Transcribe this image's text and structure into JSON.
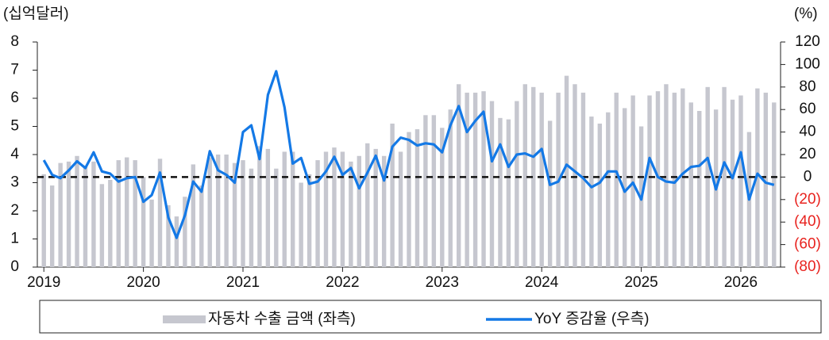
{
  "chart_data": {
    "type": "bar_line",
    "y_unit_label": "(십억달러)",
    "y2_unit_label": "(%)",
    "categories": [
      "2019",
      null,
      null,
      null,
      null,
      null,
      null,
      null,
      null,
      null,
      null,
      null,
      "2020",
      null,
      null,
      null,
      null,
      null,
      null,
      null,
      null,
      null,
      null,
      null,
      "2021",
      null,
      null,
      null,
      null,
      null,
      null,
      null,
      null,
      null,
      null,
      null,
      "2022",
      null,
      null,
      null,
      null,
      null,
      null,
      null,
      null,
      null,
      null,
      null,
      "2023",
      null,
      null,
      null,
      null,
      null,
      null,
      null,
      null,
      null,
      null,
      null,
      "2024",
      null,
      null,
      null,
      null,
      null,
      null,
      null,
      null,
      null,
      null,
      null,
      "2025",
      null,
      null,
      null,
      null,
      null,
      null,
      null,
      null,
      null,
      null,
      null,
      "2026",
      null,
      null,
      null,
      null
    ],
    "series": [
      {
        "name": "자동차 수출 금액 (좌측)",
        "kind": "bar",
        "axis": "y",
        "color": "#c6c7cf",
        "values": [
          3.3,
          2.9,
          3.7,
          3.75,
          3.95,
          3.6,
          3.75,
          2.95,
          3.1,
          3.8,
          3.9,
          3.8,
          3.2,
          2.4,
          3.85,
          2.2,
          1.8,
          2.5,
          3.65,
          2.9,
          3.9,
          4.0,
          4.0,
          3.7,
          3.8,
          3.5,
          4.3,
          4.2,
          3.5,
          4.1,
          4.1,
          3.0,
          3.3,
          3.8,
          4.1,
          4.25,
          4.1,
          3.75,
          3.95,
          4.4,
          4.2,
          3.95,
          5.1,
          4.1,
          4.8,
          4.9,
          5.4,
          5.4,
          4.95,
          5.6,
          6.5,
          6.2,
          6.2,
          6.25,
          5.9,
          5.3,
          5.25,
          5.9,
          6.5,
          6.4,
          6.2,
          5.2,
          6.2,
          6.8,
          6.5,
          6.2,
          5.35,
          5.1,
          5.5,
          6.2,
          5.65,
          6.1,
          5.0,
          6.1,
          6.25,
          6.5,
          6.2,
          6.35,
          5.85,
          5.55,
          6.4,
          5.6,
          6.4,
          5.95,
          6.1,
          4.8,
          6.35,
          6.2,
          5.85
        ]
      },
      {
        "name": "YoY 증감율 (우측)",
        "kind": "line",
        "axis": "y2",
        "color": "#1479e6",
        "values": [
          15,
          2,
          -1,
          6,
          14,
          8,
          22,
          5,
          3,
          -4,
          -1,
          0,
          -22,
          -16,
          4,
          -36,
          -54,
          -34,
          -4,
          -13,
          23,
          6,
          2,
          -5,
          40,
          46,
          16,
          73,
          94,
          62,
          12,
          17,
          -6,
          -4,
          5,
          18,
          2,
          8,
          -10,
          4,
          19,
          -3,
          27,
          35,
          33,
          28,
          30,
          29,
          22,
          46,
          63,
          40,
          50,
          58,
          14,
          29,
          9,
          20,
          21,
          18,
          25,
          -7,
          -4,
          11,
          5,
          -1,
          -9,
          -5,
          5,
          5,
          -13,
          -5,
          -20,
          17,
          0,
          -4,
          -5,
          3,
          9,
          10,
          17,
          -11,
          13,
          -1,
          22,
          -20,
          3,
          -5,
          -7
        ]
      }
    ],
    "ylim": [
      0,
      8
    ],
    "yticks": [
      0,
      1,
      2,
      3,
      4,
      5,
      6,
      7,
      8
    ],
    "y2lim": [
      -80,
      120
    ],
    "y2ticks": [
      {
        "value": -80,
        "label": "(80)"
      },
      {
        "value": -60,
        "label": "(60)"
      },
      {
        "value": -40,
        "label": "(40)"
      },
      {
        "value": -20,
        "label": "(20)"
      },
      0,
      20,
      40,
      60,
      80,
      100,
      120
    ],
    "negative_tick_color": "#e8231f",
    "reference_line": {
      "axis": "y2",
      "value": 0
    },
    "legend": "bottom"
  }
}
